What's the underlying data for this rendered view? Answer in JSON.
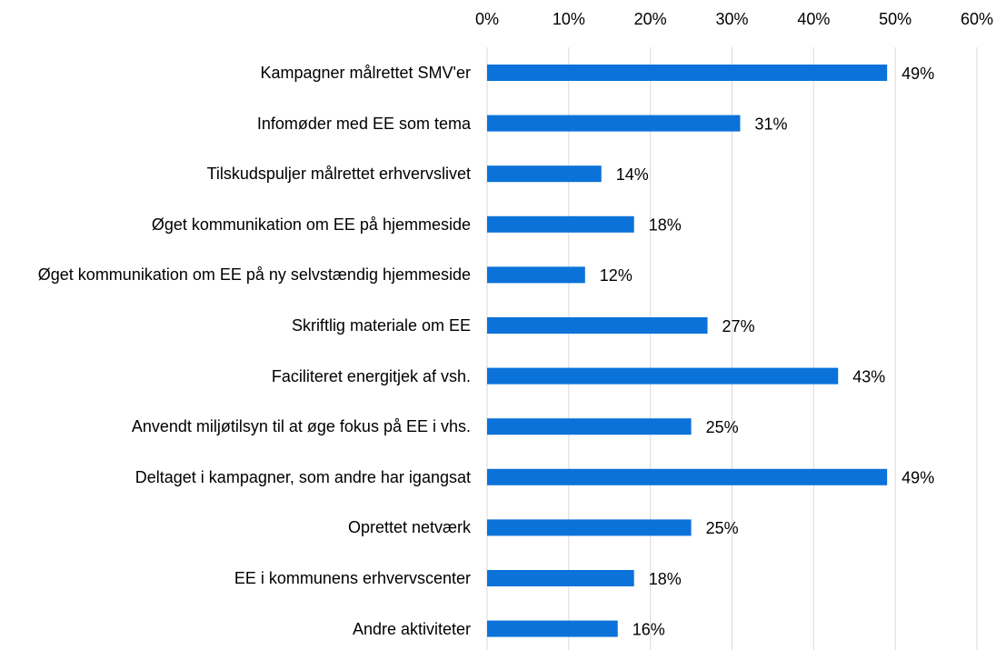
{
  "chart_data": {
    "type": "barh",
    "categories": [
      "Kampagner målrettet SMV'er",
      "Infomøder med EE som tema",
      "Tilskudspuljer målrettet erhvervslivet",
      "Øget kommunikation om EE på hjemmeside",
      "Øget kommunikation om EE på ny selvstændig hjemmeside",
      "Skriftlig materiale om EE",
      "Faciliteret energitjek af vsh.",
      "Anvendt miljøtilsyn til at øge fokus på EE i vhs.",
      "Deltaget i kampagner, som andre har igangsat",
      "Oprettet netværk",
      "EE i kommunens erhvervscenter",
      "Andre aktiviteter"
    ],
    "values": [
      49,
      31,
      14,
      18,
      12,
      27,
      43,
      25,
      49,
      25,
      18,
      16
    ],
    "value_labels": [
      "49%",
      "31%",
      "14%",
      "18%",
      "12%",
      "27%",
      "43%",
      "25%",
      "49%",
      "25%",
      "18%",
      "16%"
    ],
    "color": "#0b72d9",
    "xlim": [
      0,
      60
    ],
    "xticks": [
      {
        "value": 0,
        "label": "0%"
      },
      {
        "value": 10,
        "label": "10%"
      },
      {
        "value": 20,
        "label": "20%"
      },
      {
        "value": 30,
        "label": "30%"
      },
      {
        "value": 40,
        "label": "40%"
      },
      {
        "value": 50,
        "label": "50%"
      },
      {
        "value": 60,
        "label": "60%"
      }
    ],
    "grid": true
  }
}
